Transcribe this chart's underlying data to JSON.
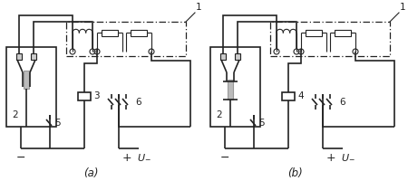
{
  "bg_color": "#ffffff",
  "line_color": "#222222",
  "lw": 1.2,
  "lw_thin": 0.8,
  "fig_w": 4.5,
  "fig_h": 2.0,
  "dpi": 100,
  "label_a": "(a)",
  "label_b": "(b)"
}
